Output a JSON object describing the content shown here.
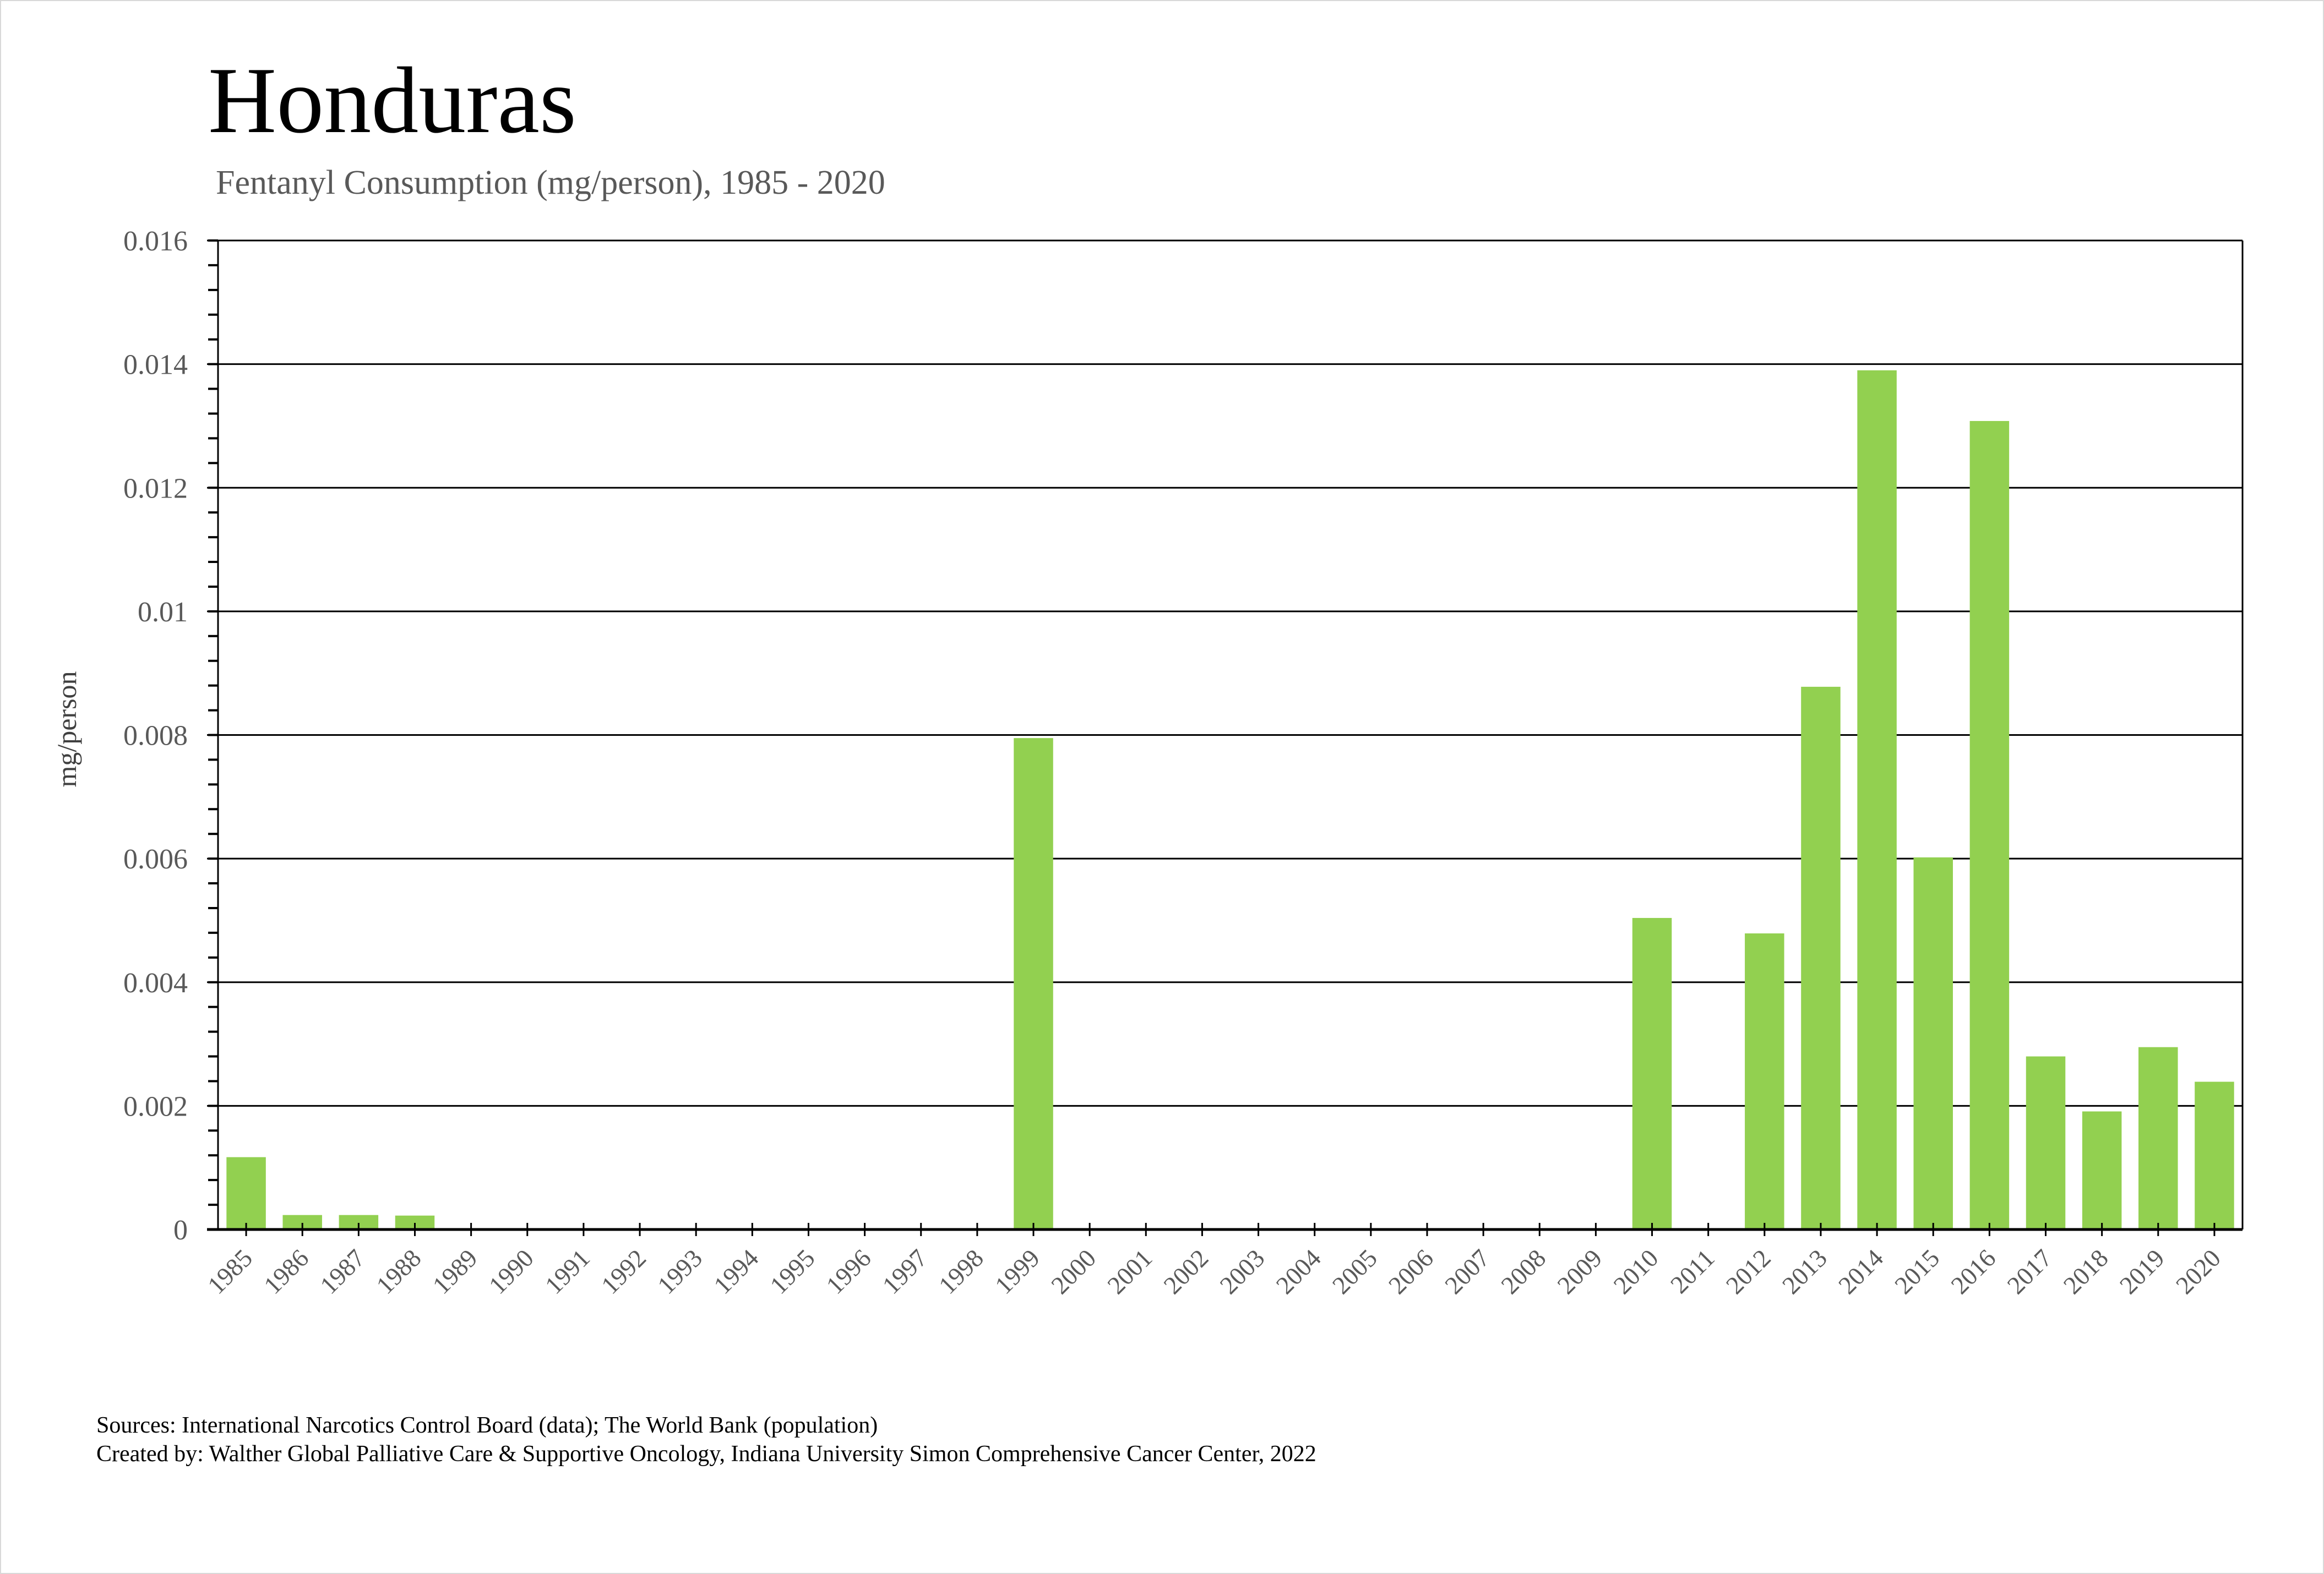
{
  "chart_data": {
    "type": "bar",
    "title": "Honduras",
    "subtitle": "Fentanyl Consumption (mg/person), 1985 - 2020",
    "xlabel": "",
    "ylabel": "mg/person",
    "ylim": [
      0,
      0.016
    ],
    "yticks": [
      "0",
      "0.002",
      "0.004",
      "0.006",
      "0.008",
      "0.01",
      "0.012",
      "0.014",
      "0.016"
    ],
    "ytick_values": [
      0,
      0.002,
      0.004,
      0.006,
      0.008,
      0.01,
      0.012,
      0.014,
      0.016
    ],
    "grid": true,
    "bar_color": "#92d050",
    "categories": [
      "1985",
      "1986",
      "1987",
      "1988",
      "1989",
      "1990",
      "1991",
      "1992",
      "1993",
      "1994",
      "1995",
      "1996",
      "1997",
      "1998",
      "1999",
      "2000",
      "2001",
      "2002",
      "2003",
      "2004",
      "2005",
      "2006",
      "2007",
      "2008",
      "2009",
      "2010",
      "2011",
      "2012",
      "2013",
      "2014",
      "2015",
      "2016",
      "2017",
      "2018",
      "2019",
      "2020"
    ],
    "values": [
      0.00117,
      0.000234,
      0.000234,
      0.000225,
      0,
      0,
      0,
      0,
      0,
      0,
      0,
      0,
      0,
      0,
      0.00795,
      0,
      0,
      0,
      0,
      0,
      0,
      0,
      0,
      0,
      0,
      0.00504,
      0,
      0.00479,
      0.00878,
      0.0139,
      0.00602,
      0.01308,
      0.0028,
      0.00191,
      0.00295,
      0.00239
    ]
  },
  "footer": {
    "sources": "Sources: International Narcotics Control Board (data); The World Bank (population)",
    "created_by": "Created by: Walther Global Palliative Care & Supportive Oncology, Indiana University Simon Comprehensive Cancer Center, 2022"
  }
}
